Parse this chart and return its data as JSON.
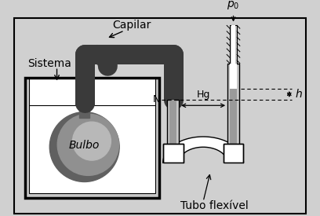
{
  "background_color": "#d8d8d8",
  "labels": {
    "sistema": "Sistema",
    "capilar": "Capilar",
    "bulbo": "Bulbo",
    "N": "N",
    "Hg": "Hg",
    "p0": "$p_0$",
    "h": "$h$",
    "tubo_flexivel": "Tubo flexível"
  },
  "colors": {
    "dark_tube": "#3a3a3a",
    "medium_gray": "#888888",
    "light_gray": "#c8c8c8",
    "tube_inner": "#e0e0e0",
    "mercury": "#9a9a9a",
    "background": "#d0d0d0",
    "white": "#ffffff",
    "black": "#000000",
    "bulb_dark": "#606060",
    "bulb_mid": "#909090",
    "bulb_light": "#b8b8b8",
    "tank_fill": "#c0c0c0"
  }
}
